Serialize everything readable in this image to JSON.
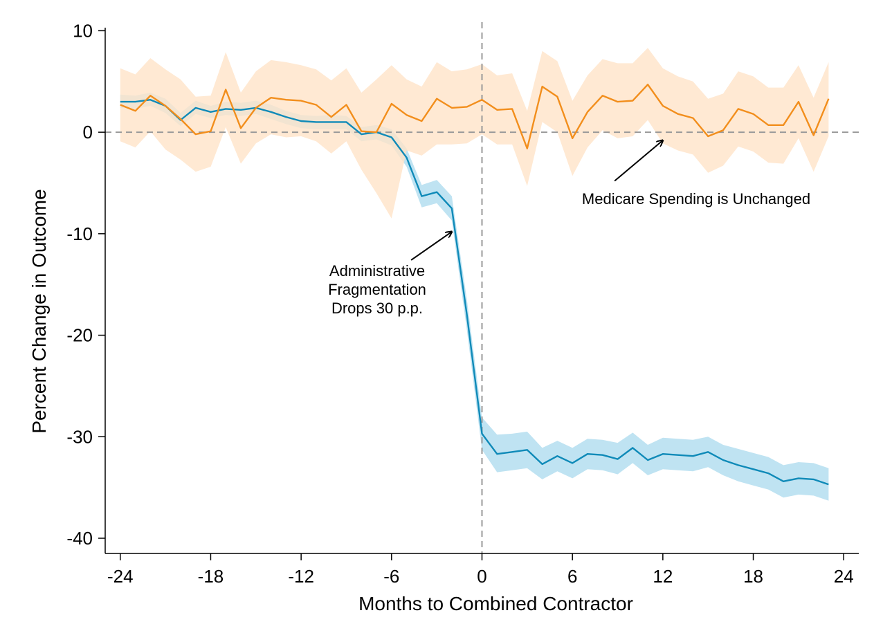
{
  "chart_data": {
    "type": "line",
    "title": "",
    "xlabel": "Months to Combined Contractor",
    "ylabel": "Percent Change in Outcome",
    "xlim": [
      -25,
      25
    ],
    "ylim": [
      -41.5,
      10.3
    ],
    "xticks": [
      -24,
      -18,
      -12,
      -6,
      0,
      6,
      12,
      18,
      24
    ],
    "yticks": [
      10,
      0,
      -10,
      -20,
      -30,
      -40
    ],
    "xtick_labels": [
      "-24",
      "-18",
      "-12",
      "-6",
      "0",
      "6",
      "12",
      "18",
      "24"
    ],
    "ytick_labels": [
      "10",
      "0",
      "-10",
      "-20",
      "-30",
      "-40"
    ],
    "grid": false,
    "reference_lines": [
      {
        "axis": "y",
        "value": 0,
        "style": "dashed",
        "color": "#999999"
      },
      {
        "axis": "x",
        "value": 0,
        "style": "dashed",
        "color": "#999999"
      }
    ],
    "x": [
      -24,
      -23,
      -22,
      -21,
      -20,
      -19,
      -18,
      -17,
      -16,
      -15,
      -14,
      -13,
      -12,
      -11,
      -10,
      -9,
      -8,
      -7,
      -6,
      -5,
      -4,
      -3,
      -2,
      -1,
      0,
      1,
      2,
      3,
      4,
      5,
      6,
      7,
      8,
      9,
      10,
      11,
      12,
      13,
      14,
      15,
      16,
      17,
      18,
      19,
      20,
      21,
      22,
      23
    ],
    "series": [
      {
        "color": "#0f8ab8",
        "band_color": "#bfe3f2",
        "values": [
          3.0,
          3.0,
          3.2,
          2.6,
          1.2,
          2.4,
          2.0,
          2.3,
          2.2,
          2.4,
          2.0,
          1.5,
          1.1,
          1.0,
          1.0,
          1.0,
          -0.2,
          0.0,
          -0.5,
          -2.5,
          -6.3,
          -5.9,
          -7.5,
          -18.0,
          -29.7,
          -31.7,
          -31.5,
          -31.3,
          -32.7,
          -31.9,
          -32.6,
          -31.7,
          -31.8,
          -32.2,
          -31.1,
          -32.3,
          -31.7,
          -31.8,
          -31.9,
          -31.5,
          -32.3,
          -32.8,
          -33.2,
          -33.6,
          -34.4,
          -34.1,
          -34.2,
          -34.7
        ],
        "lower": [
          2.4,
          2.3,
          2.6,
          1.9,
          0.6,
          1.8,
          1.4,
          1.7,
          1.6,
          1.8,
          1.3,
          0.8,
          0.4,
          0.3,
          0.3,
          0.3,
          -0.9,
          -0.7,
          -1.3,
          -3.4,
          -7.4,
          -7.0,
          -8.7,
          -19.5,
          -31.3,
          -33.5,
          -33.3,
          -33.1,
          -34.2,
          -33.4,
          -34.1,
          -33.2,
          -33.3,
          -33.7,
          -32.6,
          -33.8,
          -33.2,
          -33.3,
          -33.4,
          -33.0,
          -33.8,
          -34.4,
          -34.8,
          -35.2,
          -36.0,
          -35.7,
          -35.8,
          -36.3
        ],
        "upper": [
          3.7,
          3.6,
          3.9,
          3.3,
          1.9,
          3.1,
          2.6,
          3.0,
          2.9,
          3.1,
          2.7,
          2.1,
          1.7,
          1.6,
          1.7,
          1.6,
          0.5,
          0.7,
          0.3,
          -1.6,
          -5.2,
          -4.7,
          -6.3,
          -16.5,
          -28.1,
          -29.8,
          -29.7,
          -29.5,
          -31.1,
          -30.4,
          -31.1,
          -30.2,
          -30.3,
          -30.6,
          -29.6,
          -30.8,
          -30.1,
          -30.2,
          -30.3,
          -30.0,
          -30.8,
          -31.2,
          -31.6,
          -32.0,
          -32.8,
          -32.5,
          -32.6,
          -33.1
        ]
      },
      {
        "color": "#f28e1c",
        "band_color": "#ffe3c8",
        "values": [
          2.7,
          2.1,
          3.6,
          2.6,
          1.3,
          -0.2,
          0.1,
          4.2,
          0.4,
          2.4,
          3.4,
          3.2,
          3.1,
          2.7,
          1.5,
          2.7,
          0.1,
          0.0,
          2.8,
          1.7,
          1.1,
          3.3,
          2.4,
          2.5,
          3.2,
          2.2,
          2.3,
          -1.6,
          4.5,
          3.5,
          -0.6,
          2.0,
          3.6,
          3.0,
          3.1,
          4.7,
          2.6,
          1.8,
          1.4,
          -0.4,
          0.2,
          2.3,
          1.8,
          0.7,
          0.7,
          3.0,
          -0.3,
          3.3
        ],
        "lower": [
          -0.9,
          -1.5,
          0.1,
          -1.7,
          -2.7,
          -3.9,
          -3.4,
          0.5,
          -3.1,
          -1.1,
          -0.2,
          -0.5,
          -0.4,
          -0.9,
          -2.1,
          -0.9,
          -3.7,
          -6.0,
          -8.5,
          -1.8,
          -2.3,
          -1.2,
          -1.2,
          -1.1,
          -0.2,
          -1.2,
          -1.2,
          -5.3,
          1.0,
          0.0,
          -4.3,
          -1.5,
          0.2,
          -0.6,
          -0.4,
          1.2,
          -1.1,
          -1.8,
          -2.2,
          -4.0,
          -3.3,
          -1.4,
          -1.9,
          -3.0,
          -3.1,
          -0.6,
          -3.9,
          -0.4
        ],
        "upper": [
          6.3,
          5.7,
          7.3,
          6.2,
          5.2,
          3.5,
          3.6,
          7.9,
          3.9,
          6.0,
          7.1,
          6.9,
          6.6,
          6.2,
          5.1,
          6.3,
          3.9,
          5.2,
          6.6,
          5.2,
          4.5,
          6.9,
          6.0,
          6.2,
          6.7,
          5.6,
          5.8,
          2.1,
          8.0,
          7.0,
          3.1,
          5.6,
          7.2,
          6.8,
          6.8,
          8.3,
          6.3,
          5.5,
          5.0,
          3.3,
          3.8,
          6.0,
          5.5,
          4.4,
          4.4,
          6.6,
          3.4,
          6.9
        ]
      }
    ],
    "annotations": [
      {
        "lines": [
          "Medicare Spending is Unchanged"
        ],
        "arrow_to": [
          12,
          -0.8
        ],
        "arrow_from": [
          8.8,
          -4.8
        ]
      },
      {
        "lines": [
          "Administrative",
          "Fragmentation",
          "Drops 30 p.p."
        ],
        "arrow_to": [
          -2,
          -9.8
        ],
        "arrow_from": [
          -4.7,
          -12.6
        ]
      }
    ]
  }
}
